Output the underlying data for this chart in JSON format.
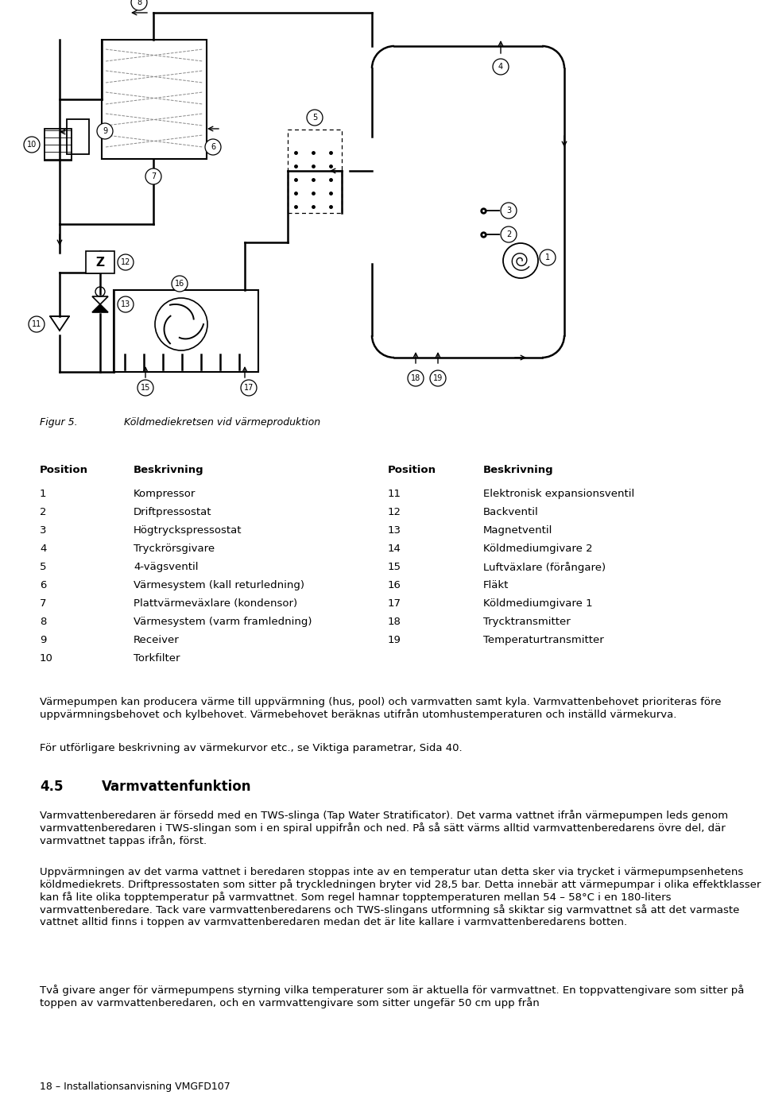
{
  "fig_caption_label": "Figur 5.",
  "fig_caption_text": "  Köldmediekretsen vid värmeproduktion",
  "table_header_left": [
    "Position",
    "Beskrivning"
  ],
  "table_header_right": [
    "Position",
    "Beskrivning"
  ],
  "table_left": [
    [
      "1",
      "Kompressor"
    ],
    [
      "2",
      "Driftpressostat"
    ],
    [
      "3",
      "Högtryckspressostat"
    ],
    [
      "4",
      "Tryckrörsgivare"
    ],
    [
      "5",
      "4-vägsventil"
    ],
    [
      "6",
      "Värmesystem (kall returledning)"
    ],
    [
      "7",
      "Plattvärmeväxlare (kondensor)"
    ],
    [
      "8",
      "Värmesystem (varm framledning)"
    ],
    [
      "9",
      "Receiver"
    ],
    [
      "10",
      "Torkfilter"
    ]
  ],
  "table_right": [
    [
      "11",
      "Elektronisk expansionsventil"
    ],
    [
      "12",
      "Backventil"
    ],
    [
      "13",
      "Magnetventil"
    ],
    [
      "14",
      "Köldmediumgivare 2"
    ],
    [
      "15",
      "Luftväxlare (förångare)"
    ],
    [
      "16",
      "Fläkt"
    ],
    [
      "17",
      "Köldmediumgivare 1"
    ],
    [
      "18",
      "Trycktransmitter"
    ],
    [
      "19",
      "Temperaturtransmitter"
    ]
  ],
  "para1": "Värmepumpen kan producera värme till uppvärmning (hus, pool) och varmvatten samt kyla. Varmvattenbehovet prioriteras före uppvärmningsbehovet och kylbehovet. Värmebehovet beräknas utifrån utomhustemperaturen och inställd värmekurva.",
  "para2": "För utförligare beskrivning av värmekurvor etc., se Viktiga parametrar, Sida 40.",
  "section_num": "4.5",
  "section_title": "Varmvattenfunktion",
  "para3": "Varmvattenberedaren är försedd med en TWS-slinga (Tap Water Stratificator). Det varma vattnet ifrån värmepumpen leds genom varmvattenberedaren i TWS-slingan som i en spiral uppifrån och ned. På så sätt värms alltid varmvattenberedarens övre del, där varmvattnet tappas ifrån, först.",
  "para4": "Uppvärmningen av det varma vattnet i beredaren stoppas inte av en temperatur utan detta sker via trycket i värmepumpsenhetens köldmediekrets. Driftpressostaten som sitter på tryckledningen bryter vid 28,5 bar. Detta innebär att värmepumpar i olika effektklasser kan få lite olika topptemperatur på varmvattnet. Som regel hamnar topptemperaturen mellan 54 – 58°C i en 180-liters varmvattenberedare. Tack vare varmvattenberedarens och TWS-slingans utformning så skiktar sig varmvattnet så att det varmaste vattnet alltid finns i toppen av varmvattenberedaren medan det är lite kallare i varmvattenberedarens botten.",
  "para5": "Två givare anger för värmepumpens styrning vilka temperaturer som är aktuella för varmvattnet. En toppvattengivare som sitter på toppen av varmvattenberedaren, och en varmvattengivare som sitter ungefär 50 cm upp från",
  "footer": "18 – Installationsanvisning VMGFD107",
  "bg_color": "#ffffff",
  "text_color": "#000000"
}
